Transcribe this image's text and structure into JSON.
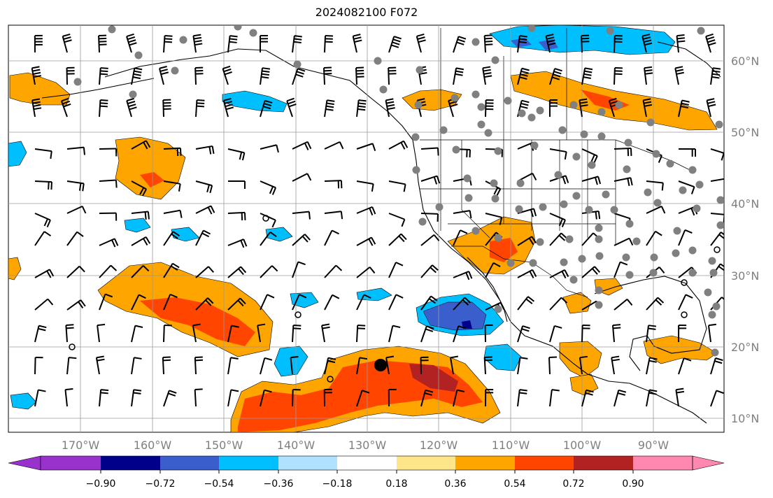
{
  "title": "2024082100 F072",
  "map": {
    "lat_labels": [
      "60°N",
      "50°N",
      "40°N",
      "30°N",
      "20°N",
      "10°N"
    ],
    "lon_labels": [
      "170°W",
      "160°W",
      "150°W",
      "140°W",
      "130°W",
      "120°W",
      "110°W",
      "100°W",
      "90°W"
    ],
    "storm_marker": "filled-circle",
    "station_marker": "gray-dot"
  },
  "colorbar": {
    "colors": [
      "#9932cc",
      "#00008b",
      "#3a5fcd",
      "#00bfff",
      "#b0e2ff",
      "#ffffff",
      "#fde68a",
      "#ffa500",
      "#ff4500",
      "#b22222",
      "#ff88b0"
    ],
    "labels": [
      "−0.90",
      "−0.72",
      "−0.54",
      "−0.36",
      "−0.18",
      "0.18",
      "0.36",
      "0.54",
      "0.72",
      "0.90"
    ]
  }
}
